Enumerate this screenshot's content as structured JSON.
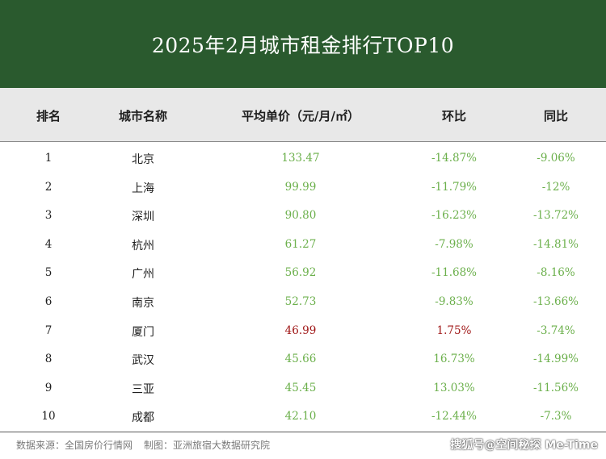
{
  "title": "2025年2月城市租金排行TOP10",
  "headers": {
    "rank": "排名",
    "city": "城市名称",
    "price": "平均单价（元/月/㎡）",
    "mom": "环比",
    "yoy": "同比"
  },
  "rows": [
    {
      "rank": "1",
      "city": "北京",
      "price": "133.47",
      "mom": "-14.87%",
      "yoy": "-9.06%",
      "price_status": "green",
      "mom_status": "green",
      "yoy_status": "green"
    },
    {
      "rank": "2",
      "city": "上海",
      "price": "99.99",
      "mom": "-11.79%",
      "yoy": "-12%",
      "price_status": "green",
      "mom_status": "green",
      "yoy_status": "green"
    },
    {
      "rank": "3",
      "city": "深圳",
      "price": "90.80",
      "mom": "-16.23%",
      "yoy": "-13.72%",
      "price_status": "green",
      "mom_status": "green",
      "yoy_status": "green"
    },
    {
      "rank": "4",
      "city": "杭州",
      "price": "61.27",
      "mom": "-7.98%",
      "yoy": "-14.81%",
      "price_status": "green",
      "mom_status": "green",
      "yoy_status": "green"
    },
    {
      "rank": "5",
      "city": "广州",
      "price": "56.92",
      "mom": "-11.68%",
      "yoy": "-8.16%",
      "price_status": "green",
      "mom_status": "green",
      "yoy_status": "green"
    },
    {
      "rank": "6",
      "city": "南京",
      "price": "52.73",
      "mom": "-9.83%",
      "yoy": "-13.66%",
      "price_status": "green",
      "mom_status": "green",
      "yoy_status": "green"
    },
    {
      "rank": "7",
      "city": "厦门",
      "price": "46.99",
      "mom": "1.75%",
      "yoy": "-3.74%",
      "price_status": "red",
      "mom_status": "red",
      "yoy_status": "green"
    },
    {
      "rank": "8",
      "city": "武汉",
      "price": "45.66",
      "mom": "16.73%",
      "yoy": "-14.99%",
      "price_status": "green",
      "mom_status": "green",
      "yoy_status": "green"
    },
    {
      "rank": "9",
      "city": "三亚",
      "price": "45.45",
      "mom": "13.03%",
      "yoy": "-11.56%",
      "price_status": "green",
      "mom_status": "green",
      "yoy_status": "green"
    },
    {
      "rank": "10",
      "city": "成都",
      "price": "42.10",
      "mom": "-12.44%",
      "yoy": "-7.3%",
      "price_status": "green",
      "mom_status": "green",
      "yoy_status": "green"
    }
  ],
  "footer": {
    "source": "数据来源：全国房价行情网",
    "producer": "制图：亚洲旅宿大数据研究院"
  },
  "watermark": "搜狐号@空间秘探 Me-Time",
  "colors": {
    "title_bg": "#2a5a2e",
    "header_bg": "#e8e8e8",
    "green": "#6cb04c",
    "red": "#a01818"
  }
}
